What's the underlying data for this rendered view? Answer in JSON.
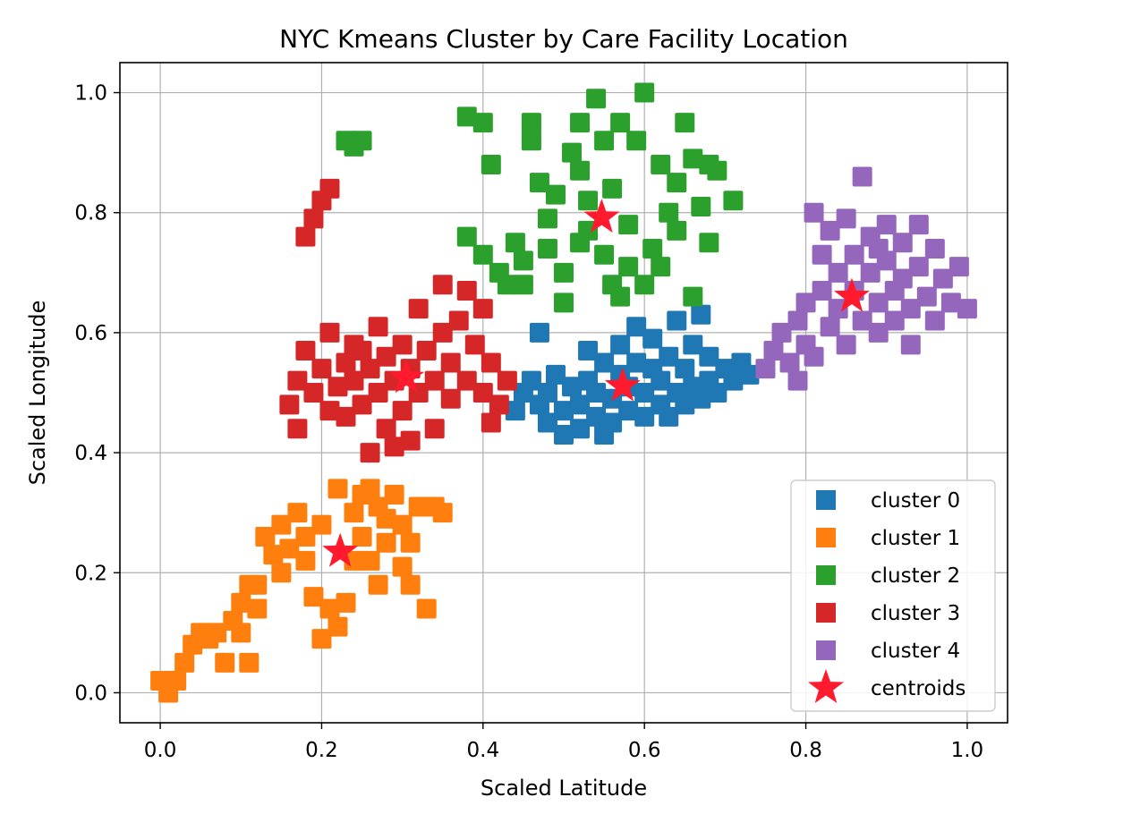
{
  "chart_data": {
    "type": "scatter",
    "title": "NYC Kmeans Cluster by Care Facility Location",
    "xlabel": "Scaled Latitude",
    "ylabel": "Scaled Longitude",
    "xlim": [
      -0.05,
      1.05
    ],
    "ylim": [
      -0.05,
      1.05
    ],
    "xticks": [
      0.0,
      0.2,
      0.4,
      0.6,
      0.8,
      1.0
    ],
    "yticks": [
      0.0,
      0.2,
      0.4,
      0.6,
      0.8,
      1.0
    ],
    "xtick_labels": [
      "0.0",
      "0.2",
      "0.4",
      "0.6",
      "0.8",
      "1.0"
    ],
    "ytick_labels": [
      "0.0",
      "0.2",
      "0.4",
      "0.6",
      "0.8",
      "1.0"
    ],
    "grid": true,
    "legend_position": "lower-right",
    "series": [
      {
        "name": "cluster 0",
        "color": "#1f77b4",
        "marker": "square",
        "points": [
          [
            0.44,
            0.47
          ],
          [
            0.45,
            0.5
          ],
          [
            0.46,
            0.52
          ],
          [
            0.47,
            0.48
          ],
          [
            0.48,
            0.45
          ],
          [
            0.48,
            0.5
          ],
          [
            0.49,
            0.53
          ],
          [
            0.5,
            0.43
          ],
          [
            0.5,
            0.47
          ],
          [
            0.51,
            0.51
          ],
          [
            0.52,
            0.44
          ],
          [
            0.52,
            0.48
          ],
          [
            0.53,
            0.52
          ],
          [
            0.54,
            0.46
          ],
          [
            0.54,
            0.5
          ],
          [
            0.55,
            0.55
          ],
          [
            0.56,
            0.45
          ],
          [
            0.56,
            0.49
          ],
          [
            0.57,
            0.53
          ],
          [
            0.57,
            0.58
          ],
          [
            0.58,
            0.47
          ],
          [
            0.58,
            0.51
          ],
          [
            0.59,
            0.55
          ],
          [
            0.59,
            0.61
          ],
          [
            0.6,
            0.46
          ],
          [
            0.6,
            0.5
          ],
          [
            0.61,
            0.54
          ],
          [
            0.62,
            0.48
          ],
          [
            0.62,
            0.52
          ],
          [
            0.63,
            0.46
          ],
          [
            0.63,
            0.56
          ],
          [
            0.64,
            0.5
          ],
          [
            0.64,
            0.62
          ],
          [
            0.65,
            0.48
          ],
          [
            0.65,
            0.54
          ],
          [
            0.66,
            0.51
          ],
          [
            0.66,
            0.58
          ],
          [
            0.67,
            0.49
          ],
          [
            0.67,
            0.63
          ],
          [
            0.68,
            0.52
          ],
          [
            0.68,
            0.56
          ],
          [
            0.69,
            0.5
          ],
          [
            0.7,
            0.54
          ],
          [
            0.71,
            0.52
          ],
          [
            0.72,
            0.55
          ],
          [
            0.73,
            0.53
          ],
          [
            0.47,
            0.6
          ],
          [
            0.53,
            0.57
          ],
          [
            0.61,
            0.59
          ],
          [
            0.55,
            0.43
          ]
        ]
      },
      {
        "name": "cluster 1",
        "color": "#ff7f0e",
        "marker": "square",
        "points": [
          [
            0.0,
            0.02
          ],
          [
            0.01,
            0.0
          ],
          [
            0.02,
            0.02
          ],
          [
            0.03,
            0.05
          ],
          [
            0.04,
            0.08
          ],
          [
            0.05,
            0.1
          ],
          [
            0.06,
            0.09
          ],
          [
            0.08,
            0.05
          ],
          [
            0.09,
            0.12
          ],
          [
            0.1,
            0.15
          ],
          [
            0.1,
            0.1
          ],
          [
            0.11,
            0.18
          ],
          [
            0.11,
            0.05
          ],
          [
            0.12,
            0.14
          ],
          [
            0.13,
            0.26
          ],
          [
            0.14,
            0.23
          ],
          [
            0.15,
            0.2
          ],
          [
            0.15,
            0.28
          ],
          [
            0.16,
            0.24
          ],
          [
            0.17,
            0.3
          ],
          [
            0.18,
            0.22
          ],
          [
            0.19,
            0.16
          ],
          [
            0.2,
            0.28
          ],
          [
            0.2,
            0.09
          ],
          [
            0.21,
            0.14
          ],
          [
            0.22,
            0.34
          ],
          [
            0.22,
            0.11
          ],
          [
            0.23,
            0.15
          ],
          [
            0.24,
            0.3
          ],
          [
            0.25,
            0.26
          ],
          [
            0.25,
            0.33
          ],
          [
            0.26,
            0.22
          ],
          [
            0.27,
            0.31
          ],
          [
            0.28,
            0.29
          ],
          [
            0.28,
            0.25
          ],
          [
            0.29,
            0.33
          ],
          [
            0.3,
            0.28
          ],
          [
            0.3,
            0.21
          ],
          [
            0.31,
            0.25
          ],
          [
            0.31,
            0.18
          ],
          [
            0.32,
            0.31
          ],
          [
            0.33,
            0.14
          ],
          [
            0.18,
            0.26
          ],
          [
            0.24,
            0.22
          ],
          [
            0.34,
            0.31
          ],
          [
            0.27,
            0.18
          ],
          [
            0.35,
            0.3
          ],
          [
            0.12,
            0.18
          ],
          [
            0.07,
            0.1
          ],
          [
            0.26,
            0.34
          ]
        ]
      },
      {
        "name": "cluster 2",
        "color": "#2ca02c",
        "marker": "square",
        "points": [
          [
            0.23,
            0.92
          ],
          [
            0.24,
            0.91
          ],
          [
            0.25,
            0.92
          ],
          [
            0.38,
            0.96
          ],
          [
            0.4,
            0.95
          ],
          [
            0.38,
            0.76
          ],
          [
            0.4,
            0.73
          ],
          [
            0.41,
            0.88
          ],
          [
            0.42,
            0.7
          ],
          [
            0.43,
            0.68
          ],
          [
            0.44,
            0.75
          ],
          [
            0.45,
            0.72
          ],
          [
            0.46,
            0.95
          ],
          [
            0.46,
            0.92
          ],
          [
            0.47,
            0.85
          ],
          [
            0.48,
            0.79
          ],
          [
            0.48,
            0.74
          ],
          [
            0.49,
            0.83
          ],
          [
            0.5,
            0.7
          ],
          [
            0.5,
            0.65
          ],
          [
            0.51,
            0.9
          ],
          [
            0.52,
            0.87
          ],
          [
            0.52,
            0.95
          ],
          [
            0.53,
            0.82
          ],
          [
            0.53,
            0.77
          ],
          [
            0.54,
            0.99
          ],
          [
            0.55,
            0.92
          ],
          [
            0.55,
            0.73
          ],
          [
            0.56,
            0.68
          ],
          [
            0.56,
            0.84
          ],
          [
            0.57,
            0.95
          ],
          [
            0.58,
            0.78
          ],
          [
            0.58,
            0.71
          ],
          [
            0.59,
            0.92
          ],
          [
            0.6,
            1.0
          ],
          [
            0.6,
            0.68
          ],
          [
            0.61,
            0.74
          ],
          [
            0.62,
            0.88
          ],
          [
            0.63,
            0.8
          ],
          [
            0.64,
            0.85
          ],
          [
            0.64,
            0.77
          ],
          [
            0.65,
            0.95
          ],
          [
            0.66,
            0.89
          ],
          [
            0.66,
            0.66
          ],
          [
            0.67,
            0.81
          ],
          [
            0.68,
            0.88
          ],
          [
            0.68,
            0.75
          ],
          [
            0.69,
            0.87
          ],
          [
            0.71,
            0.82
          ],
          [
            0.62,
            0.71
          ],
          [
            0.57,
            0.66
          ],
          [
            0.45,
            0.68
          ],
          [
            0.52,
            0.75
          ]
        ]
      },
      {
        "name": "cluster 3",
        "color": "#d62728",
        "marker": "square",
        "points": [
          [
            0.16,
            0.48
          ],
          [
            0.17,
            0.52
          ],
          [
            0.17,
            0.44
          ],
          [
            0.18,
            0.57
          ],
          [
            0.18,
            0.76
          ],
          [
            0.19,
            0.79
          ],
          [
            0.2,
            0.82
          ],
          [
            0.21,
            0.84
          ],
          [
            0.19,
            0.5
          ],
          [
            0.2,
            0.54
          ],
          [
            0.21,
            0.47
          ],
          [
            0.21,
            0.6
          ],
          [
            0.22,
            0.51
          ],
          [
            0.23,
            0.55
          ],
          [
            0.23,
            0.46
          ],
          [
            0.24,
            0.52
          ],
          [
            0.25,
            0.57
          ],
          [
            0.25,
            0.48
          ],
          [
            0.26,
            0.54
          ],
          [
            0.26,
            0.4
          ],
          [
            0.27,
            0.5
          ],
          [
            0.27,
            0.61
          ],
          [
            0.28,
            0.44
          ],
          [
            0.28,
            0.56
          ],
          [
            0.29,
            0.41
          ],
          [
            0.29,
            0.52
          ],
          [
            0.3,
            0.58
          ],
          [
            0.3,
            0.47
          ],
          [
            0.31,
            0.54
          ],
          [
            0.32,
            0.64
          ],
          [
            0.32,
            0.5
          ],
          [
            0.33,
            0.57
          ],
          [
            0.34,
            0.44
          ],
          [
            0.34,
            0.52
          ],
          [
            0.35,
            0.6
          ],
          [
            0.35,
            0.68
          ],
          [
            0.36,
            0.49
          ],
          [
            0.36,
            0.55
          ],
          [
            0.37,
            0.62
          ],
          [
            0.38,
            0.52
          ],
          [
            0.38,
            0.67
          ],
          [
            0.39,
            0.58
          ],
          [
            0.4,
            0.5
          ],
          [
            0.4,
            0.64
          ],
          [
            0.41,
            0.55
          ],
          [
            0.41,
            0.45
          ],
          [
            0.42,
            0.48
          ],
          [
            0.43,
            0.52
          ],
          [
            0.24,
            0.58
          ],
          [
            0.31,
            0.42
          ]
        ]
      },
      {
        "name": "cluster 4",
        "color": "#9467bd",
        "marker": "square",
        "points": [
          [
            0.75,
            0.54
          ],
          [
            0.76,
            0.57
          ],
          [
            0.77,
            0.6
          ],
          [
            0.78,
            0.55
          ],
          [
            0.79,
            0.62
          ],
          [
            0.8,
            0.65
          ],
          [
            0.8,
            0.58
          ],
          [
            0.81,
            0.8
          ],
          [
            0.82,
            0.73
          ],
          [
            0.82,
            0.67
          ],
          [
            0.83,
            0.61
          ],
          [
            0.83,
            0.77
          ],
          [
            0.84,
            0.7
          ],
          [
            0.84,
            0.64
          ],
          [
            0.85,
            0.79
          ],
          [
            0.85,
            0.58
          ],
          [
            0.86,
            0.73
          ],
          [
            0.86,
            0.67
          ],
          [
            0.87,
            0.62
          ],
          [
            0.87,
            0.86
          ],
          [
            0.88,
            0.76
          ],
          [
            0.88,
            0.7
          ],
          [
            0.89,
            0.65
          ],
          [
            0.89,
            0.6
          ],
          [
            0.9,
            0.78
          ],
          [
            0.9,
            0.72
          ],
          [
            0.91,
            0.67
          ],
          [
            0.91,
            0.62
          ],
          [
            0.92,
            0.75
          ],
          [
            0.92,
            0.69
          ],
          [
            0.93,
            0.64
          ],
          [
            0.94,
            0.78
          ],
          [
            0.94,
            0.71
          ],
          [
            0.95,
            0.66
          ],
          [
            0.96,
            0.74
          ],
          [
            0.96,
            0.62
          ],
          [
            0.97,
            0.69
          ],
          [
            0.98,
            0.65
          ],
          [
            0.99,
            0.71
          ],
          [
            1.0,
            0.64
          ],
          [
            0.93,
            0.58
          ],
          [
            0.79,
            0.52
          ],
          [
            0.81,
            0.56
          ],
          [
            0.89,
            0.74
          ]
        ]
      },
      {
        "name": "centroids",
        "color": "#ff1a2e",
        "marker": "star",
        "points": [
          [
            0.573,
            0.511
          ],
          [
            0.223,
            0.235
          ],
          [
            0.547,
            0.792
          ],
          [
            0.305,
            0.525
          ],
          [
            0.857,
            0.66
          ]
        ]
      }
    ]
  }
}
